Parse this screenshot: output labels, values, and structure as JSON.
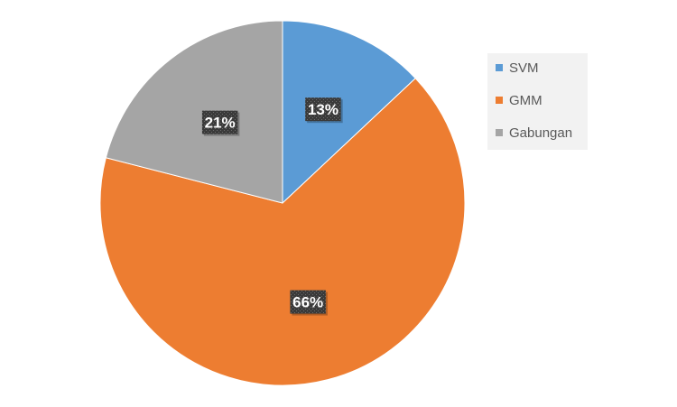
{
  "chart_data": {
    "type": "pie",
    "categories": [
      "SVM",
      "GMM",
      "Gabungan"
    ],
    "values": [
      13,
      66,
      21
    ],
    "data_labels": [
      "13%",
      "66%",
      "21%"
    ],
    "colors": [
      "#5b9bd5",
      "#ed7d31",
      "#a5a5a5"
    ],
    "start_angle_deg": 0,
    "direction": "clockwise",
    "legend_position": "right",
    "title": ""
  }
}
